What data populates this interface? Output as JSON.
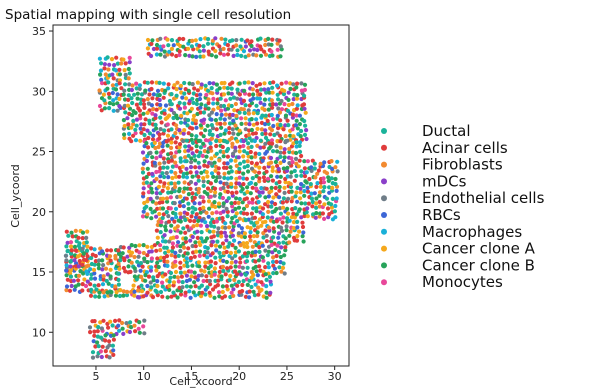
{
  "chart_data": {
    "type": "scatter",
    "title": "Spatial mapping with single cell resolution",
    "xlabel": "Cell_xcoord",
    "ylabel": "Cell_ycoord",
    "xlim": [
      0.5,
      31.5
    ],
    "ylim": [
      7.2,
      35.5
    ],
    "xticks": [
      5,
      10,
      15,
      20,
      25,
      30
    ],
    "yticks": [
      10,
      15,
      20,
      25,
      30,
      35
    ],
    "grid": false,
    "legend_position": "right",
    "series": [
      {
        "name": "Ductal",
        "color": "#1bb39a"
      },
      {
        "name": "Acinar cells",
        "color": "#e03c3c"
      },
      {
        "name": "Fibroblasts",
        "color": "#f28a30"
      },
      {
        "name": "mDCs",
        "color": "#8a3fc9"
      },
      {
        "name": "Endothelial cells",
        "color": "#6f7d88"
      },
      {
        "name": "RBCs",
        "color": "#3d66d6"
      },
      {
        "name": "Macrophages",
        "color": "#19b0d8"
      },
      {
        "name": "Cancer clone A",
        "color": "#f5a81c"
      },
      {
        "name": "Cancer clone B",
        "color": "#27a35a"
      },
      {
        "name": "Monocytes",
        "color": "#e8479a"
      }
    ],
    "tissue_regions": [
      {
        "x": [
          5.5,
          8.5
        ],
        "y": [
          31,
          33
        ]
      },
      {
        "x": [
          10.5,
          24.5
        ],
        "y": [
          33,
          34.3
        ]
      },
      {
        "x": [
          5.5,
          27
        ],
        "y": [
          28.5,
          31
        ]
      },
      {
        "x": [
          8,
          27
        ],
        "y": [
          26,
          28.5
        ]
      },
      {
        "x": [
          10,
          26.5
        ],
        "y": [
          24.5,
          26
        ]
      },
      {
        "x": [
          10,
          30.5
        ],
        "y": [
          19.5,
          24.5
        ]
      },
      {
        "x": [
          11.5,
          27
        ],
        "y": [
          17.5,
          19.5
        ]
      },
      {
        "x": [
          7.5,
          25
        ],
        "y": [
          15,
          17.5
        ]
      },
      {
        "x": [
          9,
          23.5
        ],
        "y": [
          13,
          15
        ]
      },
      {
        "x": [
          2,
          4.5
        ],
        "y": [
          15,
          18.5
        ]
      },
      {
        "x": [
          2,
          7.5
        ],
        "y": [
          13.5,
          17
        ]
      },
      {
        "x": [
          4.5,
          10
        ],
        "y": [
          13,
          13.5
        ]
      },
      {
        "x": [
          4.5,
          10
        ],
        "y": [
          10,
          11.2
        ]
      },
      {
        "x": [
          4.8,
          7
        ],
        "y": [
          8,
          10
        ]
      }
    ]
  }
}
